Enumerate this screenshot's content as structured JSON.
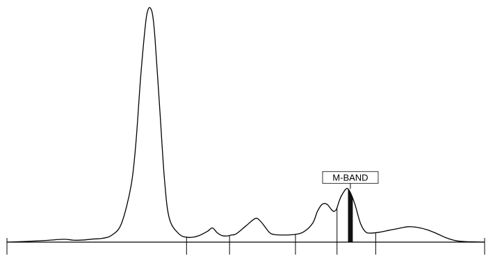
{
  "chart_data": {
    "type": "line",
    "title": "",
    "xlabel": "",
    "ylabel": "",
    "xlim": [
      0,
      100
    ],
    "ylim": [
      0,
      100
    ],
    "grid": false,
    "legend": "none",
    "series": [
      {
        "values_note_skip": false,
        "x": [
          0,
          4,
          8,
          12,
          14,
          16,
          18,
          20,
          22,
          24,
          26,
          27,
          28,
          29,
          29.5,
          30,
          30.5,
          31,
          32,
          33,
          34,
          36,
          38,
          40,
          42,
          43,
          44,
          45,
          46,
          47,
          48,
          50,
          52,
          53,
          54,
          55,
          56,
          58,
          60,
          62,
          64,
          65,
          66,
          67,
          68,
          68.5,
          69,
          69.5,
          70,
          71,
          71.5,
          72,
          72.5,
          73,
          74,
          75,
          76,
          78,
          80,
          82,
          84,
          86,
          88,
          90,
          92,
          94,
          96,
          98,
          100
        ],
        "y": [
          0,
          0.3,
          0.7,
          1.2,
          0.8,
          0.9,
          1.3,
          1.6,
          3,
          8,
          24,
          42,
          70,
          92,
          98,
          99,
          96,
          86,
          56,
          26,
          10,
          3.5,
          2,
          2.6,
          4.6,
          6,
          4,
          2.8,
          2.6,
          3,
          3.5,
          6.8,
          10,
          9,
          6.5,
          4,
          3.2,
          3,
          3.2,
          4.2,
          8,
          13,
          16,
          16,
          13.6,
          13,
          14,
          17,
          19.5,
          22.5,
          22.3,
          20.5,
          18,
          15,
          8,
          4.5,
          3.8,
          4.2,
          5,
          5.8,
          6.5,
          6.2,
          5.2,
          3.6,
          1.8,
          0.6,
          0.2,
          0.1,
          0
        ]
      }
    ],
    "tick_x": [
      0,
      37.6,
      46.6,
      60.4,
      69.1,
      77.2,
      100
    ],
    "mband_range": [
      71.4,
      72.4
    ],
    "annotations": [
      {
        "text": "M-BAND",
        "x": 71.9,
        "y": 22.5
      }
    ]
  }
}
